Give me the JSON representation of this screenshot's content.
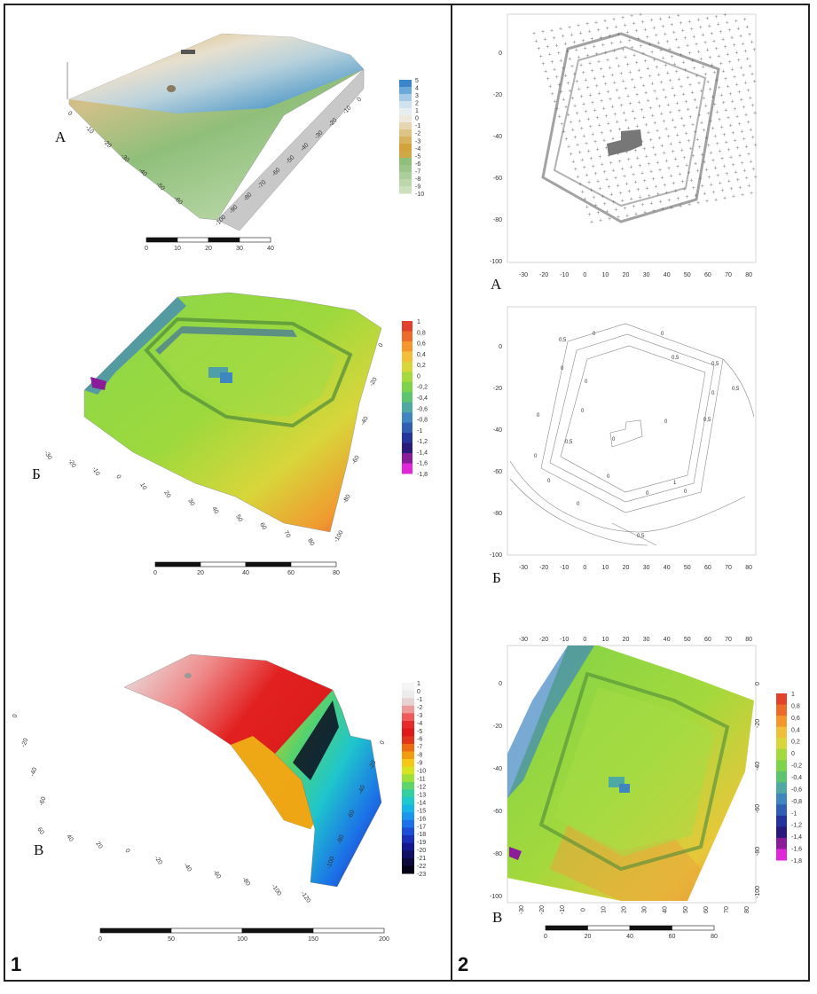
{
  "panel_numbers": {
    "left": "1",
    "right": "2"
  },
  "left": {
    "A": {
      "letter": "А",
      "legend": [
        "5",
        "4",
        "3",
        "2",
        "1",
        "0",
        "-1",
        "-2",
        "-3",
        "-4",
        "-5",
        "-6",
        "-7",
        "-8",
        "-9",
        "-10"
      ],
      "legend_colors": [
        "#3a86c8",
        "#6aa9d8",
        "#a3cbe6",
        "#cfe3ef",
        "#e8eef0",
        "#efe9dd",
        "#e5d6b0",
        "#dcc386",
        "#d8b25e",
        "#d4a23a",
        "#cfa846",
        "#8fbf7a",
        "#9cc689",
        "#abcf9a",
        "#bcd8ab",
        "#cce1bb"
      ],
      "scale_labels": [
        "0",
        "10",
        "20",
        "30",
        "40"
      ],
      "axis_left": [
        "0",
        "-10",
        "-20",
        "-30",
        "-40",
        "-50",
        "-60"
      ],
      "axis_right": [
        "0",
        "-10",
        "-20",
        "-30",
        "-40",
        "-50",
        "-60",
        "-70",
        "-80",
        "-90",
        "-100"
      ]
    },
    "B": {
      "letter": "Б",
      "legend": [
        "1",
        "0,8",
        "0,6",
        "0,4",
        "0,2",
        "0",
        "-0,2",
        "-0,4",
        "-0,6",
        "-0,8",
        "-1",
        "-1,2",
        "-1,4",
        "-1,6",
        "-1,8"
      ],
      "legend_colors": [
        "#e2422b",
        "#ec6b2a",
        "#f3962e",
        "#f2bf3a",
        "#d8d63a",
        "#a6d93e",
        "#7dd44a",
        "#5cc46e",
        "#4ea9a3",
        "#3f86c0",
        "#2f5fb3",
        "#23359c",
        "#2a1a7a",
        "#8a1c9a",
        "#e028d8"
      ],
      "scale_labels": [
        "0",
        "20",
        "40",
        "60",
        "80"
      ],
      "axis_bottom": [
        "-30",
        "-20",
        "-10",
        "0",
        "10",
        "20",
        "30",
        "40",
        "50",
        "60",
        "70",
        "80"
      ],
      "axis_right": [
        "0",
        "-20",
        "-40",
        "-60",
        "-80",
        "-100"
      ]
    },
    "C": {
      "letter": "В",
      "legend": [
        "1",
        "0",
        "-1",
        "-2",
        "-3",
        "-4",
        "-5",
        "-6",
        "-7",
        "-8",
        "-9",
        "-10",
        "-11",
        "-12",
        "-13",
        "-14",
        "-15",
        "-16",
        "-17",
        "-18",
        "-19",
        "-20",
        "-21",
        "-22",
        "-23"
      ],
      "legend_colors": [
        "#f5f5f5",
        "#ececec",
        "#e6d2d2",
        "#ec9a9a",
        "#ef5a5a",
        "#e62b2b",
        "#e01818",
        "#e2341a",
        "#eb6a12",
        "#f29c10",
        "#f5c814",
        "#d6e31f",
        "#9ee03a",
        "#5fd66a",
        "#33cfa0",
        "#1fc8cc",
        "#19b4e6",
        "#1a96ee",
        "#1c72ea",
        "#1d4ed8",
        "#1b30b8",
        "#16188f",
        "#120f66",
        "#0b0a3a",
        "#030315"
      ],
      "scale_labels": [
        "0",
        "50",
        "100",
        "150",
        "200"
      ],
      "axis_bottom": [
        "60",
        "40",
        "20",
        "0",
        "-20",
        "-40",
        "-60",
        "-80",
        "-100",
        "-120"
      ],
      "axis_left": [
        "0",
        "-20",
        "-40",
        "-60"
      ],
      "axis_right": [
        "0",
        "-20",
        "-40",
        "-60",
        "-80",
        "-100"
      ]
    }
  },
  "right": {
    "A": {
      "letter": "А",
      "x_ticks": [
        "-30",
        "-20",
        "-10",
        "0",
        "10",
        "20",
        "30",
        "40",
        "50",
        "60",
        "70",
        "80"
      ],
      "y_ticks": [
        "0",
        "-20",
        "-40",
        "-60",
        "-80",
        "-100"
      ]
    },
    "B": {
      "letter": "Б",
      "x_ticks": [
        "-30",
        "-20",
        "-10",
        "0",
        "10",
        "20",
        "30",
        "40",
        "50",
        "60",
        "70",
        "80"
      ],
      "y_ticks": [
        "0",
        "-20",
        "-40",
        "-60",
        "-80",
        "-100"
      ],
      "contour_labels": [
        "0",
        "0",
        "0",
        "0",
        "0,5",
        "0,5",
        "0",
        "0",
        "0",
        "0,5",
        "0",
        "0,5",
        "0",
        "0,5",
        "0",
        "0,5",
        "0",
        "0",
        "0",
        "0",
        "1",
        "0",
        "0,5"
      ]
    },
    "C": {
      "letter": "В",
      "x_ticks": [
        "-30",
        "-20",
        "-10",
        "0",
        "10",
        "20",
        "30",
        "40",
        "50",
        "60",
        "70",
        "80"
      ],
      "y_ticks": [
        "0",
        "-20",
        "-40",
        "-60",
        "-80",
        "-100"
      ],
      "legend": [
        "1",
        "0,8",
        "0,6",
        "0,4",
        "0,2",
        "0",
        "-0,2",
        "-0,4",
        "-0,6",
        "-0,8",
        "-1",
        "-1,2",
        "-1,4",
        "-1,6",
        "-1,8"
      ],
      "legend_colors": [
        "#e2422b",
        "#ec6b2a",
        "#f3962e",
        "#f2bf3a",
        "#d8d63a",
        "#a6d93e",
        "#7dd44a",
        "#5cc46e",
        "#4ea9a3",
        "#3f86c0",
        "#2f5fb3",
        "#23359c",
        "#2a1a7a",
        "#8a1c9a",
        "#e028d8"
      ],
      "scale_labels": [
        "0",
        "20",
        "40",
        "60",
        "80"
      ]
    }
  }
}
